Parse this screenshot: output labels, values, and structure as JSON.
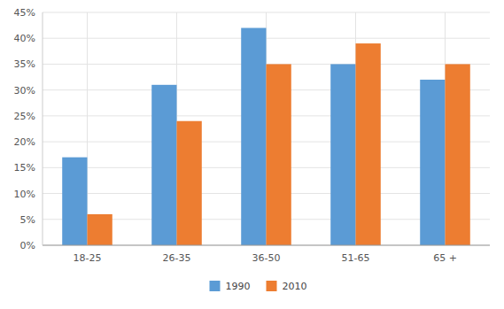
{
  "chart_data": {
    "type": "bar",
    "categories": [
      "18-25",
      "26-35",
      "36-50",
      "51-65",
      "65 +"
    ],
    "series": [
      {
        "name": "1990",
        "color": "#5B9BD5",
        "values": [
          0.17,
          0.31,
          0.42,
          0.35,
          0.32
        ]
      },
      {
        "name": "2010",
        "color": "#ED7D31",
        "values": [
          0.06,
          0.24,
          0.35,
          0.39,
          0.35
        ]
      }
    ],
    "ylim": [
      0,
      0.45
    ],
    "yticks": [
      {
        "value": 0.0,
        "label": "0%"
      },
      {
        "value": 0.05,
        "label": "5%"
      },
      {
        "value": 0.1,
        "label": "10%"
      },
      {
        "value": 0.15,
        "label": "15%"
      },
      {
        "value": 0.2,
        "label": "20%"
      },
      {
        "value": 0.25,
        "label": "25%"
      },
      {
        "value": 0.3,
        "label": "30%"
      },
      {
        "value": 0.35,
        "label": "35%"
      },
      {
        "value": 0.4,
        "label": "40%"
      },
      {
        "value": 0.45,
        "label": "45%"
      }
    ],
    "grid": true,
    "legend": "bottom"
  }
}
